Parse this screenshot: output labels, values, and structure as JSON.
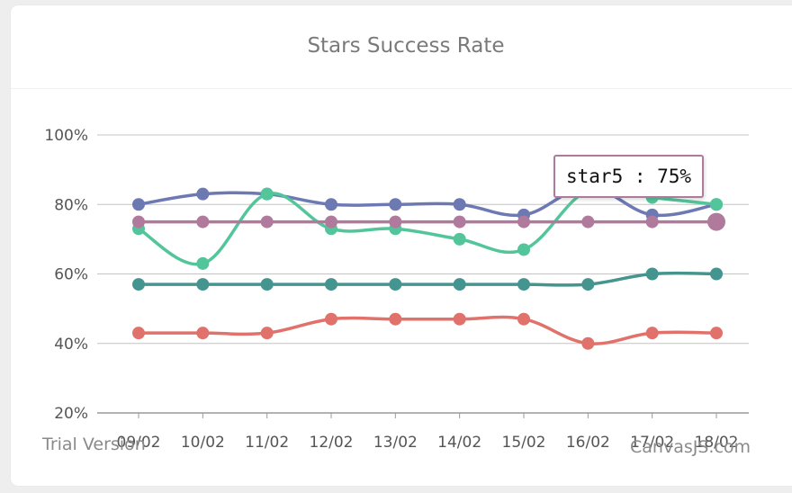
{
  "chart_data": {
    "type": "line",
    "title": "Stars Success Rate",
    "xlabel": "",
    "ylabel": "",
    "categories": [
      "09/02",
      "10/02",
      "11/02",
      "12/02",
      "13/02",
      "14/02",
      "15/02",
      "16/02",
      "17/02",
      "18/02"
    ],
    "y_ticks": [
      "20%",
      "40%",
      "60%",
      "80%",
      "100%"
    ],
    "ylim": [
      20,
      100
    ],
    "grid": true,
    "series": [
      {
        "values": [
          80,
          83,
          83,
          80,
          80,
          80,
          77,
          85,
          77,
          80
        ],
        "color": "#6d79b3"
      },
      {
        "values": [
          73,
          63,
          83,
          73,
          73,
          70,
          67,
          84,
          82,
          80
        ],
        "color": "#53c59a"
      },
      {
        "values": [
          57,
          57,
          57,
          57,
          57,
          57,
          57,
          57,
          60,
          60
        ],
        "color": "#44958f"
      },
      {
        "values": [
          43,
          43,
          43,
          47,
          47,
          47,
          47,
          40,
          43,
          43
        ],
        "color": "#e0726b"
      },
      {
        "name": "star5",
        "values": [
          75,
          75,
          75,
          75,
          75,
          75,
          75,
          75,
          75,
          75
        ],
        "color": "#b07a9c"
      }
    ],
    "tooltip": {
      "text": "star5 : 75%",
      "series": "star5",
      "category": "18/02",
      "value": 75
    }
  },
  "watermark": {
    "left": "Trial Version",
    "right": "CanvasJS.com"
  }
}
